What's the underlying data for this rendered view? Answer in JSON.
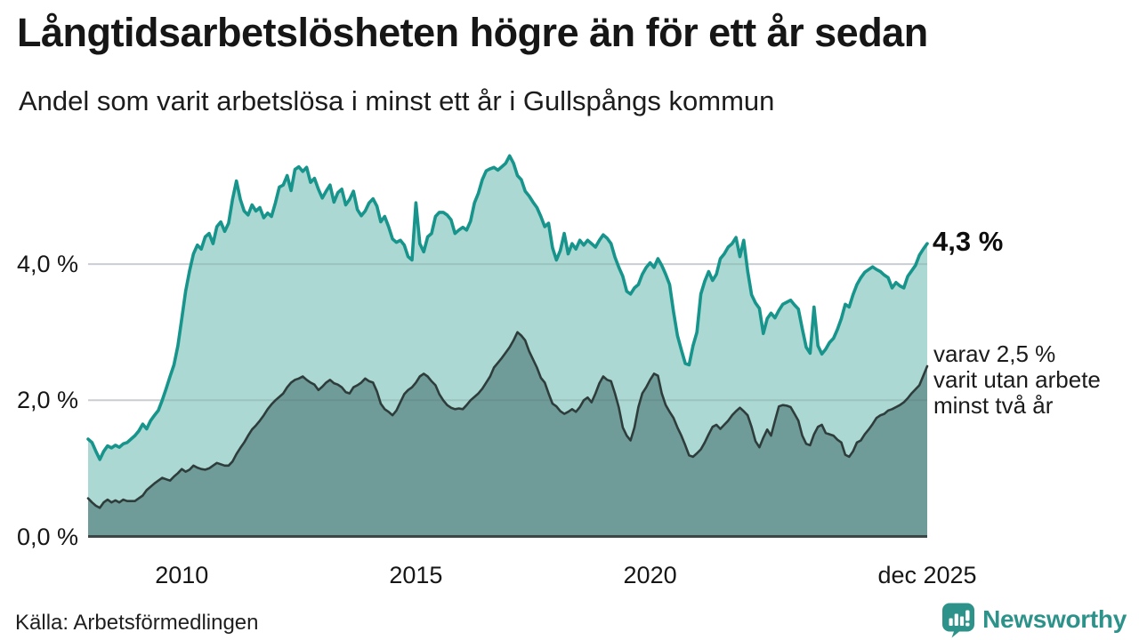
{
  "footer": {
    "source": "Källa: Arbetsförmedlingen",
    "brand": {
      "name": "Newsworthy",
      "color": "#2d938a"
    }
  },
  "chart_data": {
    "type": "area",
    "title": "Långtidsarbetslösheten högre än för ett år sedan",
    "subtitle": "Andel som varit arbetslösa i minst ett år i Gullspångs kommun",
    "x_unit": "month",
    "x_range_years": [
      2008.0,
      2025.917
    ],
    "ylim": [
      0,
      5.9
    ],
    "grid": "horizontal-only",
    "legend": "none",
    "colors": {
      "gridline": "#e3e4e8",
      "baseline": "#3b4746"
    },
    "yticks": [
      {
        "value": 0,
        "label": "0,0 %"
      },
      {
        "value": 2,
        "label": "2,0 %"
      },
      {
        "value": 4,
        "label": "4,0 %"
      }
    ],
    "xticks": [
      {
        "pos": 2010,
        "label": "2010"
      },
      {
        "pos": 2015,
        "label": "2015"
      },
      {
        "pos": 2020,
        "label": "2020"
      },
      {
        "pos": 2025.917,
        "label": "dec 2025"
      }
    ],
    "annotations": {
      "latest_label": "4,3 %",
      "secondary_lines": [
        "varav 2,5 %",
        "varit utan arbete",
        "minst två år"
      ]
    },
    "series": [
      {
        "name": "Andel arbetslösa minst ett år",
        "line_color": "#17948b",
        "fill_color": "#abd8d2",
        "last_value": 4.3,
        "start_year": 2008,
        "values_monthly": [
          1.43,
          1.38,
          1.25,
          1.13,
          1.25,
          1.33,
          1.3,
          1.34,
          1.31,
          1.36,
          1.38,
          1.43,
          1.48,
          1.55,
          1.65,
          1.58,
          1.7,
          1.78,
          1.85,
          2.0,
          2.17,
          2.35,
          2.52,
          2.8,
          3.2,
          3.6,
          3.9,
          4.15,
          4.28,
          4.22,
          4.4,
          4.45,
          4.3,
          4.55,
          4.62,
          4.48,
          4.6,
          4.95,
          5.22,
          4.95,
          4.78,
          4.72,
          4.87,
          4.78,
          4.83,
          4.68,
          4.75,
          4.7,
          4.9,
          5.13,
          5.16,
          5.3,
          5.08,
          5.39,
          5.43,
          5.36,
          5.42,
          5.2,
          5.26,
          5.1,
          4.97,
          5.07,
          5.16,
          4.91,
          5.05,
          5.1,
          4.87,
          4.95,
          5.07,
          4.8,
          4.71,
          4.78,
          4.9,
          4.96,
          4.85,
          4.62,
          4.7,
          4.55,
          4.37,
          4.32,
          4.35,
          4.28,
          4.11,
          4.06,
          4.9,
          4.3,
          4.18,
          4.4,
          4.45,
          4.7,
          4.76,
          4.76,
          4.72,
          4.65,
          4.45,
          4.5,
          4.54,
          4.5,
          4.63,
          4.9,
          5.04,
          5.24,
          5.37,
          5.4,
          5.42,
          5.38,
          5.43,
          5.48,
          5.59,
          5.48,
          5.3,
          5.24,
          5.07,
          5.0,
          4.91,
          4.83,
          4.7,
          4.55,
          4.6,
          4.24,
          4.06,
          4.2,
          4.45,
          4.15,
          4.3,
          4.22,
          4.35,
          4.28,
          4.35,
          4.3,
          4.25,
          4.35,
          4.43,
          4.38,
          4.3,
          4.1,
          3.95,
          3.82,
          3.6,
          3.56,
          3.65,
          3.7,
          3.85,
          3.95,
          4.02,
          3.95,
          4.08,
          3.98,
          3.85,
          3.7,
          3.3,
          2.95,
          2.74,
          2.54,
          2.52,
          2.8,
          3.0,
          3.56,
          3.75,
          3.89,
          3.76,
          3.85,
          4.08,
          4.15,
          4.25,
          4.3,
          4.39,
          4.11,
          4.35,
          3.9,
          3.55,
          3.43,
          3.35,
          2.98,
          3.2,
          3.28,
          3.21,
          3.32,
          3.41,
          3.44,
          3.47,
          3.4,
          3.34,
          3.05,
          2.78,
          2.69,
          3.37,
          2.8,
          2.68,
          2.75,
          2.85,
          2.91,
          3.04,
          3.2,
          3.41,
          3.37,
          3.55,
          3.7,
          3.8,
          3.88,
          3.92,
          3.96,
          3.92,
          3.89,
          3.84,
          3.8,
          3.65,
          3.73,
          3.68,
          3.65,
          3.82,
          3.9,
          3.98,
          4.13,
          4.22,
          4.3
        ]
      },
      {
        "name": "Andel arbetslösa minst två år",
        "line_color": "#2e3d3c",
        "fill_color": "#6f9c99",
        "last_value": 2.5,
        "start_year": 2008,
        "values_monthly": [
          0.56,
          0.5,
          0.45,
          0.42,
          0.5,
          0.54,
          0.5,
          0.53,
          0.5,
          0.54,
          0.52,
          0.52,
          0.52,
          0.56,
          0.6,
          0.68,
          0.73,
          0.78,
          0.82,
          0.86,
          0.84,
          0.82,
          0.88,
          0.93,
          0.99,
          0.95,
          0.98,
          1.04,
          1.01,
          0.99,
          0.98,
          1.0,
          1.04,
          1.08,
          1.06,
          1.04,
          1.04,
          1.1,
          1.21,
          1.3,
          1.38,
          1.48,
          1.57,
          1.63,
          1.7,
          1.78,
          1.87,
          1.94,
          2.0,
          2.05,
          2.1,
          2.19,
          2.26,
          2.3,
          2.32,
          2.35,
          2.3,
          2.26,
          2.23,
          2.15,
          2.2,
          2.26,
          2.3,
          2.25,
          2.23,
          2.19,
          2.12,
          2.1,
          2.19,
          2.22,
          2.26,
          2.32,
          2.28,
          2.26,
          2.13,
          1.95,
          1.87,
          1.83,
          1.78,
          1.85,
          1.97,
          2.09,
          2.15,
          2.19,
          2.26,
          2.35,
          2.39,
          2.35,
          2.28,
          2.22,
          2.09,
          2.0,
          1.93,
          1.89,
          1.87,
          1.88,
          1.87,
          1.93,
          2.0,
          2.05,
          2.1,
          2.17,
          2.26,
          2.35,
          2.48,
          2.55,
          2.62,
          2.7,
          2.78,
          2.88,
          3.0,
          2.95,
          2.88,
          2.72,
          2.6,
          2.48,
          2.33,
          2.26,
          2.1,
          1.95,
          1.91,
          1.84,
          1.8,
          1.83,
          1.87,
          1.83,
          1.9,
          2.0,
          2.04,
          1.97,
          2.1,
          2.25,
          2.35,
          2.3,
          2.28,
          2.1,
          1.89,
          1.6,
          1.48,
          1.41,
          1.6,
          1.9,
          2.1,
          2.19,
          2.3,
          2.39,
          2.36,
          2.1,
          1.93,
          1.83,
          1.74,
          1.6,
          1.48,
          1.34,
          1.19,
          1.17,
          1.22,
          1.28,
          1.38,
          1.5,
          1.61,
          1.64,
          1.58,
          1.64,
          1.7,
          1.78,
          1.84,
          1.89,
          1.84,
          1.78,
          1.61,
          1.4,
          1.31,
          1.45,
          1.57,
          1.48,
          1.7,
          1.91,
          1.93,
          1.92,
          1.9,
          1.8,
          1.7,
          1.48,
          1.36,
          1.34,
          1.5,
          1.61,
          1.64,
          1.52,
          1.5,
          1.48,
          1.42,
          1.38,
          1.2,
          1.17,
          1.25,
          1.38,
          1.41,
          1.5,
          1.57,
          1.65,
          1.74,
          1.78,
          1.8,
          1.85,
          1.87,
          1.9,
          1.93,
          1.97,
          2.03,
          2.1,
          2.16,
          2.22,
          2.36,
          2.5
        ]
      }
    ]
  }
}
